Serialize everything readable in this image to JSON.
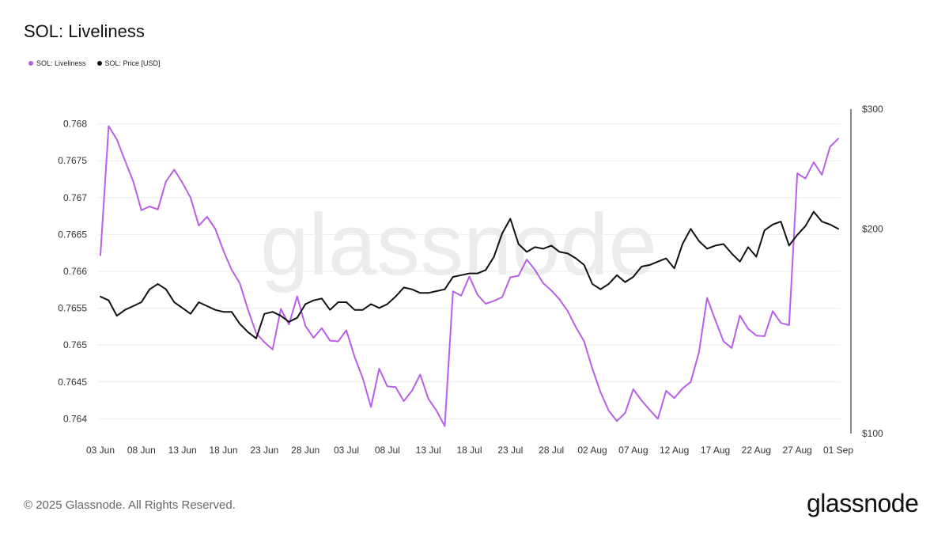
{
  "title": "SOL: Liveliness",
  "legend": [
    {
      "label": "SOL: Liveliness",
      "color": "#b95fe6"
    },
    {
      "label": "SOL: Price [USD]",
      "color": "#111111"
    }
  ],
  "watermark": "glassnode",
  "footer": {
    "copyright": "© 2025 Glassnode. All Rights Reserved.",
    "brand": "glassnode"
  },
  "chart_data": {
    "type": "line",
    "title": "SOL: Liveliness",
    "x_ticks": [
      "03 Jun",
      "08 Jun",
      "13 Jun",
      "18 Jun",
      "23 Jun",
      "28 Jun",
      "03 Jul",
      "08 Jul",
      "13 Jul",
      "18 Jul",
      "23 Jul",
      "28 Jul",
      "02 Aug",
      "07 Aug",
      "12 Aug",
      "17 Aug",
      "22 Aug",
      "27 Aug",
      "01 Sep"
    ],
    "x_range": [
      "2025-06-03",
      "2025-09-01"
    ],
    "y_left": {
      "ticks": [
        "0.764",
        "0.7645",
        "0.765",
        "0.7655",
        "0.766",
        "0.7665",
        "0.767",
        "0.7675",
        "0.768"
      ],
      "range": [
        0.7638,
        0.7682
      ]
    },
    "y_right": {
      "ticks": [
        "$100",
        "$200",
        "$300"
      ],
      "tick_values": [
        100,
        200,
        300
      ],
      "scale": "log",
      "range": [
        100,
        300
      ]
    },
    "grid": true,
    "legend_position": "top-left",
    "series": [
      {
        "name": "SOL: Liveliness",
        "axis": "left",
        "color": "#b95fe6",
        "values": [
          0.76622,
          0.76797,
          0.76779,
          0.7675,
          0.76722,
          0.76683,
          0.76688,
          0.76684,
          0.76722,
          0.76738,
          0.7672,
          0.767,
          0.76662,
          0.76674,
          0.76658,
          0.76628,
          0.76602,
          0.76584,
          0.76548,
          0.76516,
          0.76504,
          0.76494,
          0.76549,
          0.76528,
          0.76566,
          0.76526,
          0.7651,
          0.76523,
          0.76506,
          0.76505,
          0.7652,
          0.76484,
          0.76455,
          0.76416,
          0.76468,
          0.76444,
          0.76443,
          0.76424,
          0.76438,
          0.7646,
          0.76427,
          0.76411,
          0.7639,
          0.76573,
          0.76567,
          0.76593,
          0.76568,
          0.76556,
          0.7656,
          0.76565,
          0.76592,
          0.76594,
          0.76616,
          0.76602,
          0.76584,
          0.76574,
          0.76562,
          0.76546,
          0.76524,
          0.76505,
          0.76468,
          0.76436,
          0.76411,
          0.76397,
          0.76408,
          0.7644,
          0.76425,
          0.76412,
          0.764,
          0.76438,
          0.76428,
          0.76441,
          0.7645,
          0.7649,
          0.76564,
          0.76534,
          0.76505,
          0.76496,
          0.7654,
          0.76522,
          0.76513,
          0.76512,
          0.76546,
          0.7653,
          0.76527,
          0.76733,
          0.76726,
          0.76748,
          0.76731,
          0.76769,
          0.7678
        ]
      },
      {
        "name": "SOL: Price [USD]",
        "axis": "right",
        "color": "#111111",
        "values": [
          159,
          157,
          149,
          152,
          154,
          156,
          163,
          166,
          163,
          156,
          153,
          150,
          156,
          154,
          152,
          151,
          151,
          145,
          141,
          138,
          150,
          151,
          149,
          146,
          148,
          155,
          157,
          158,
          152,
          156,
          156,
          152,
          152,
          155,
          153,
          155,
          159,
          164,
          163,
          161,
          161,
          162,
          163,
          170,
          171,
          172,
          172,
          174,
          182,
          197,
          207,
          190,
          185,
          188,
          187,
          189,
          185,
          184,
          181,
          177,
          166,
          163,
          166,
          171,
          167,
          170,
          176,
          177,
          179,
          181,
          175,
          190,
          200,
          192,
          187,
          189,
          190,
          184,
          179,
          188,
          182,
          199,
          203,
          205,
          189,
          196,
          202,
          212,
          205,
          203,
          200
        ]
      }
    ]
  }
}
